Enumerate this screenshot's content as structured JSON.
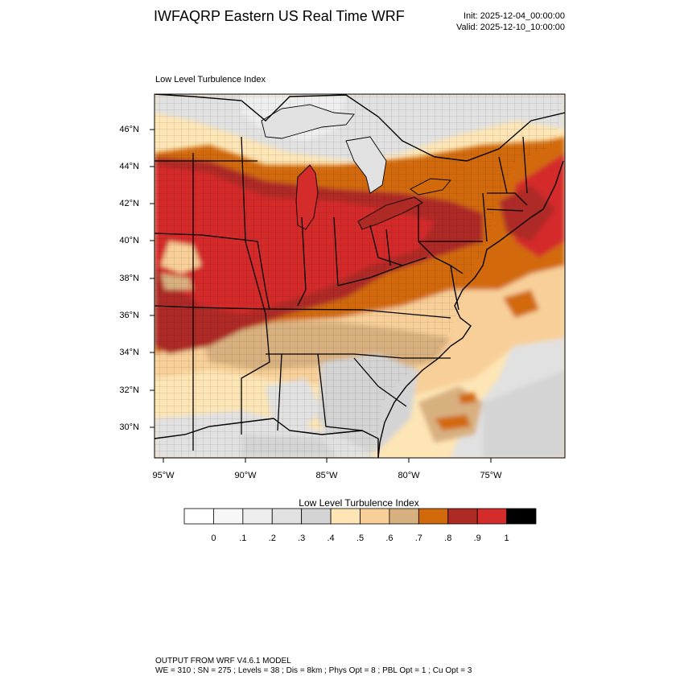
{
  "header": {
    "title": "IWFAQRP Eastern US Real Time WRF",
    "init": "Init: 2025-12-04_00:00:00",
    "valid": "Valid: 2025-12-10_10:00:00"
  },
  "map": {
    "subtitle": "Low Level Turbulence Index",
    "lat_labels": [
      "46°N",
      "44°N",
      "42°N",
      "40°N",
      "38°N",
      "36°N",
      "34°N",
      "32°N",
      "30°N"
    ],
    "lon_labels": [
      "95°W",
      "90°W",
      "85°W",
      "80°W",
      "75°W"
    ]
  },
  "colorbar": {
    "title": "Low Level Turbulence Index",
    "labels": [
      "0",
      ".1",
      ".2",
      ".3",
      ".4",
      ".5",
      ".6",
      ".7",
      ".8",
      ".9",
      "1"
    ],
    "colors": [
      "#ffffff",
      "#f7f7f7",
      "#eeeeee",
      "#e1e1e1",
      "#d4d4d4",
      "#fde5b5",
      "#f8cf98",
      "#d8b080",
      "#d26a0c",
      "#ae2b25",
      "#d42b2b",
      "#000000"
    ]
  },
  "footer": {
    "line1": "OUTPUT FROM WRF V4.6.1 MODEL",
    "line2": "WE = 310 ; SN = 275 ; Levels = 38 ; Dis = 8km ; Phys Opt = 8 ; PBL Opt = 1 ; Cu Opt = 3"
  }
}
